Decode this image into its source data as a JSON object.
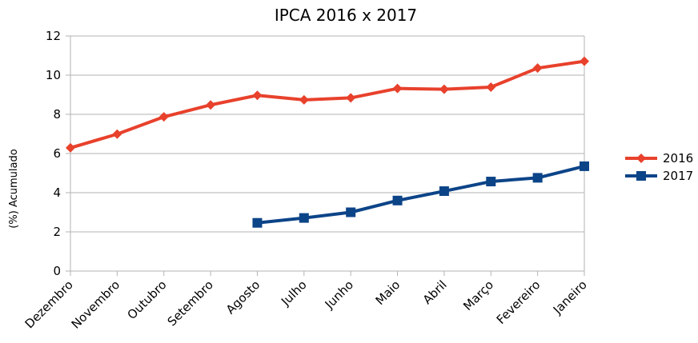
{
  "chart_data": {
    "type": "line",
    "title": "IPCA 2016 x 2017",
    "xlabel": "",
    "ylabel": "(%) Acumulado",
    "ylim": [
      0,
      12
    ],
    "yticks": [
      0,
      2,
      4,
      6,
      8,
      10,
      12
    ],
    "grid": true,
    "legend_position": "right",
    "categories": [
      "Dezembro",
      "Novembro",
      "Outubro",
      "Setembro",
      "Agosto",
      "Julho",
      "Junho",
      "Maio",
      "Abril",
      "Março",
      "Fevereiro",
      "Janeiro"
    ],
    "series": [
      {
        "name": "2016",
        "color": "#e8412c",
        "marker": "diamond",
        "values": [
          6.29,
          6.99,
          7.87,
          8.48,
          8.97,
          8.74,
          8.84,
          9.32,
          9.28,
          9.39,
          10.36,
          10.71
        ]
      },
      {
        "name": "2017",
        "color": "#0c4488",
        "marker": "square",
        "values": [
          null,
          null,
          null,
          null,
          2.46,
          2.71,
          3.0,
          3.6,
          4.08,
          4.57,
          4.76,
          5.35
        ]
      }
    ]
  }
}
